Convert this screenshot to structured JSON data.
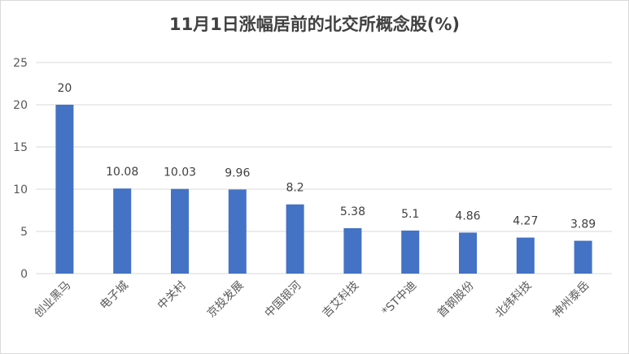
{
  "chart_data": {
    "type": "bar",
    "title": "11月1日涨幅居前的北交所概念股(%)",
    "categories": [
      "创业黑马",
      "电子城",
      "中关村",
      "京投发展",
      "中国银河",
      "吉艾科技",
      "*ST中迪",
      "首钢股份",
      "北纬科技",
      "神州泰岳"
    ],
    "values": [
      20,
      10.08,
      10.03,
      9.96,
      8.2,
      5.38,
      5.1,
      4.86,
      4.27,
      3.89
    ],
    "data_labels": [
      "20",
      "10.08",
      "10.03",
      "9.96",
      "8.2",
      "5.38",
      "5.1",
      "4.86",
      "4.27",
      "3.89"
    ],
    "y_ticks": [
      "0",
      "5",
      "10",
      "15",
      "20",
      "25"
    ],
    "ylim": [
      0,
      25
    ],
    "xlabel": "",
    "ylabel": "",
    "grid": true,
    "bar_color": "#4472c4",
    "grid_color": "#d9d9d9"
  }
}
